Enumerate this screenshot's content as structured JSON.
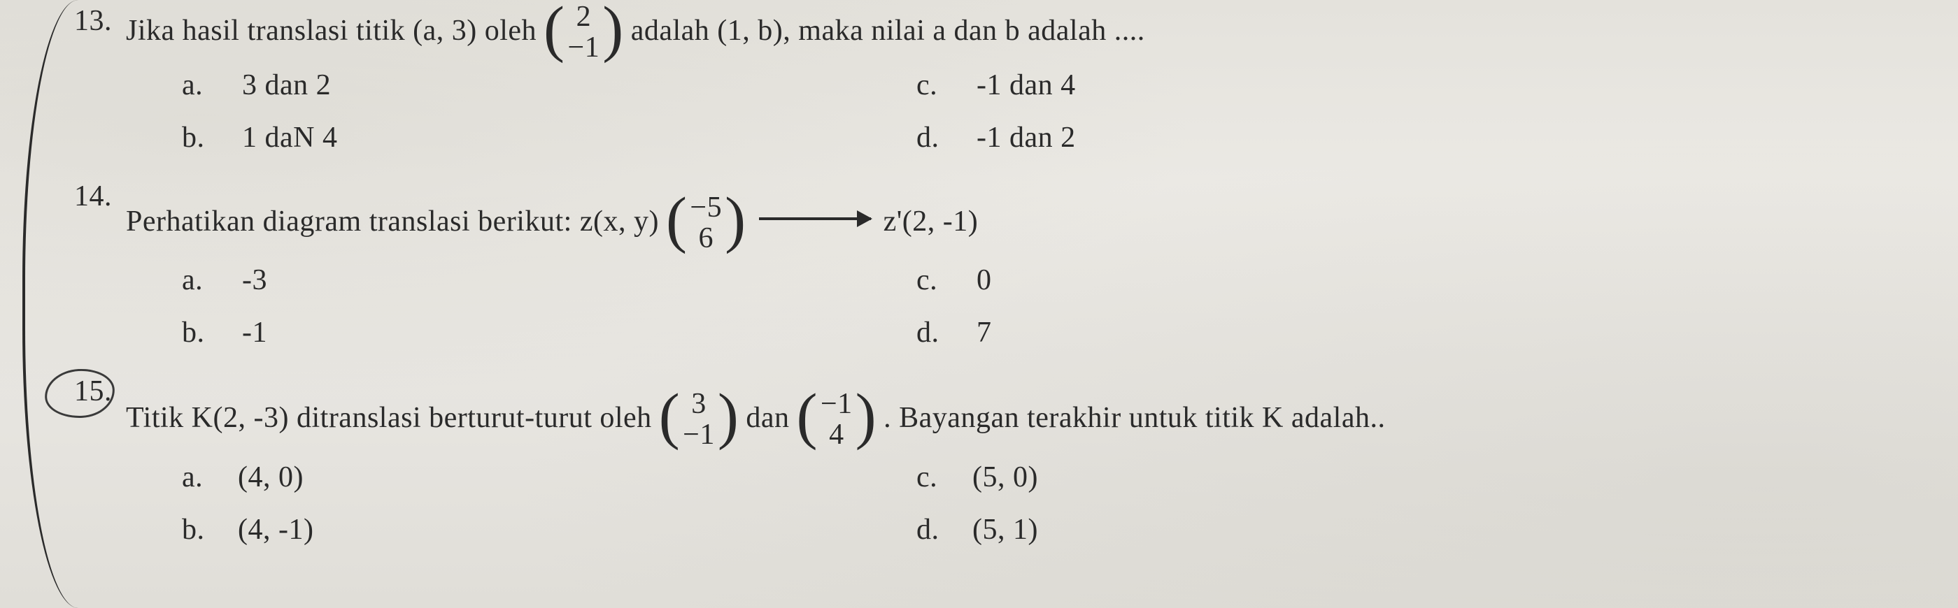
{
  "colors": {
    "text": "#2a2a2a",
    "background": "#e8e6e2",
    "curve": "#2a2a2a"
  },
  "typography": {
    "family": "Times New Roman",
    "base_size_pt": 42
  },
  "questions": {
    "q13": {
      "number": "13.",
      "stem_parts": {
        "p1": "Jika hasil translasi titik (a, 3) oleh",
        "vec_top": "2",
        "vec_bottom": "−1",
        "p2": "adalah (1, b), maka nilai a dan b adalah ...."
      },
      "options": {
        "a": {
          "letter": "a.",
          "text": "3 dan 2"
        },
        "b": {
          "letter": "b.",
          "text": "1 daN 4"
        },
        "c": {
          "letter": "c.",
          "text": "-1 dan 4"
        },
        "d": {
          "letter": "d.",
          "text": "-1 dan 2"
        }
      }
    },
    "q14": {
      "number": "14.",
      "stem_parts": {
        "p1": "Perhatikan diagram translasi berikut: z(x, y)",
        "vec_top": "−5",
        "vec_bottom": "6",
        "p2": "z'(2, -1)"
      },
      "options": {
        "a": {
          "letter": "a.",
          "text": "-3"
        },
        "b": {
          "letter": "b.",
          "text": "-1"
        },
        "c": {
          "letter": "c.",
          "text": "0"
        },
        "d": {
          "letter": "d.",
          "text": "7"
        }
      }
    },
    "q15": {
      "number": "15.",
      "circled": true,
      "stem_parts": {
        "p1": "Titik K(2, -3) ditranslasi berturut-turut oleh",
        "vec1_top": "3",
        "vec1_bottom": "−1",
        "mid": "dan",
        "vec2_top": "−1",
        "vec2_bottom": "4",
        "p2": ". Bayangan terakhir untuk titik K adalah.."
      },
      "options": {
        "a": {
          "letter": "a.",
          "text": "(4, 0)"
        },
        "b": {
          "letter": "b.",
          "text": "(4, -1)"
        },
        "c": {
          "letter": "c.",
          "text": "(5, 0)"
        },
        "d": {
          "letter": "d.",
          "text": "(5, 1)"
        }
      }
    }
  }
}
